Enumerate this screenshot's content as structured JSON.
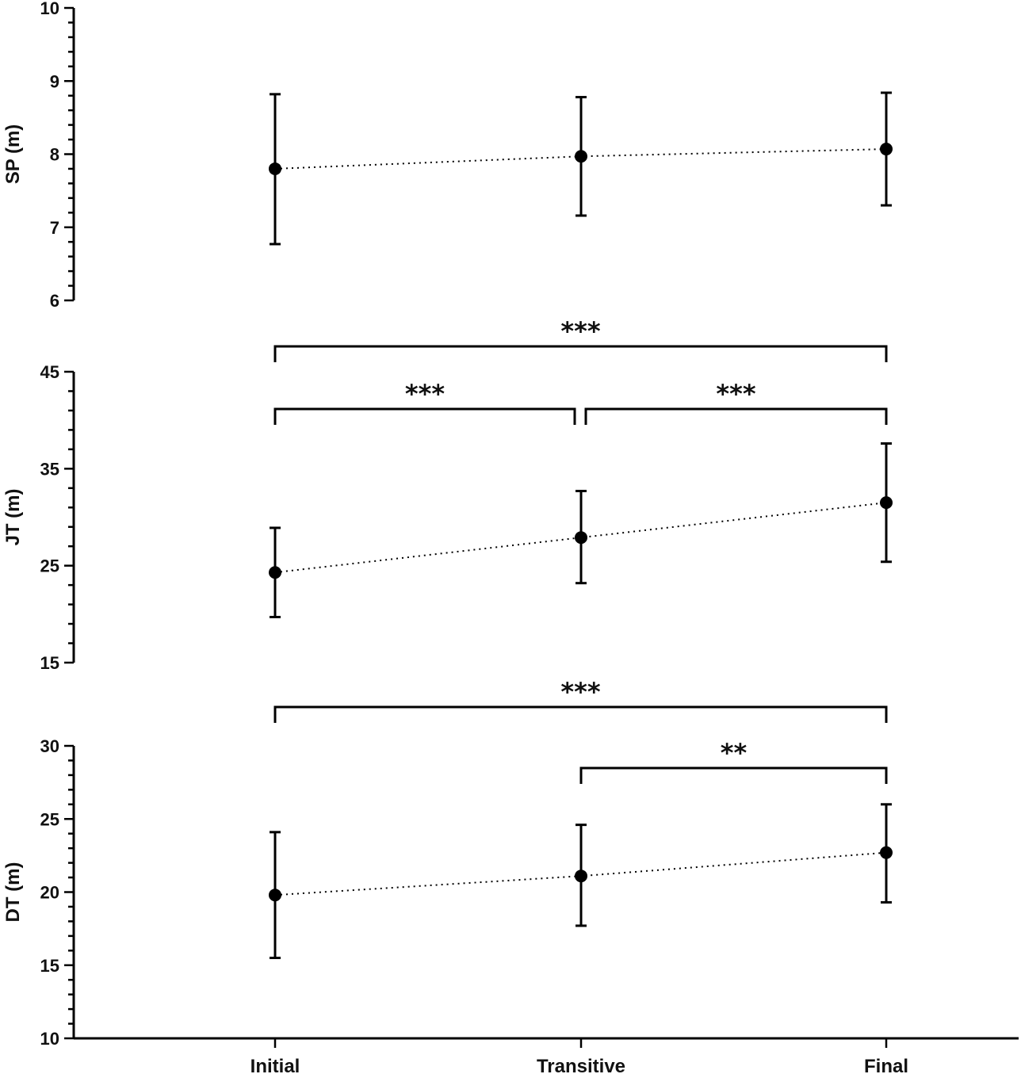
{
  "chart_data": {
    "type": "line",
    "categories": [
      "Initial",
      "Transitive",
      "Final"
    ],
    "panels": [
      {
        "ylabel": "SP (m)",
        "ylim": [
          6,
          10
        ],
        "yticks": [
          6,
          7,
          8,
          9,
          10
        ],
        "series": [
          {
            "values": [
              7.8,
              7.97,
              8.07
            ],
            "err_low": [
              6.77,
              7.16,
              7.3
            ],
            "err_high": [
              8.82,
              8.78,
              8.84
            ]
          }
        ],
        "annotations": []
      },
      {
        "ylabel": "JT (m)",
        "ylim": [
          15,
          45
        ],
        "yticks": [
          15,
          25,
          35,
          45
        ],
        "series": [
          {
            "values": [
              24.3,
              27.9,
              31.5
            ],
            "err_low": [
              19.7,
              23.2,
              25.4
            ],
            "err_high": [
              28.9,
              32.7,
              37.6
            ]
          }
        ],
        "annotations": [
          {
            "from": 0,
            "to": 2,
            "text": "***"
          },
          {
            "from": 0,
            "to": 1,
            "text": "***"
          },
          {
            "from": 1,
            "to": 2,
            "text": "***"
          }
        ]
      },
      {
        "ylabel": "DT (m)",
        "ylim": [
          10,
          30
        ],
        "yticks": [
          10,
          15,
          20,
          25,
          30
        ],
        "series": [
          {
            "values": [
              19.8,
              21.1,
              22.7
            ],
            "err_low": [
              15.5,
              17.7,
              19.3
            ],
            "err_high": [
              24.1,
              24.6,
              26.0
            ]
          }
        ],
        "annotations": [
          {
            "from": 0,
            "to": 2,
            "text": "***"
          },
          {
            "from": 1,
            "to": 2,
            "text": "**"
          }
        ]
      }
    ]
  }
}
